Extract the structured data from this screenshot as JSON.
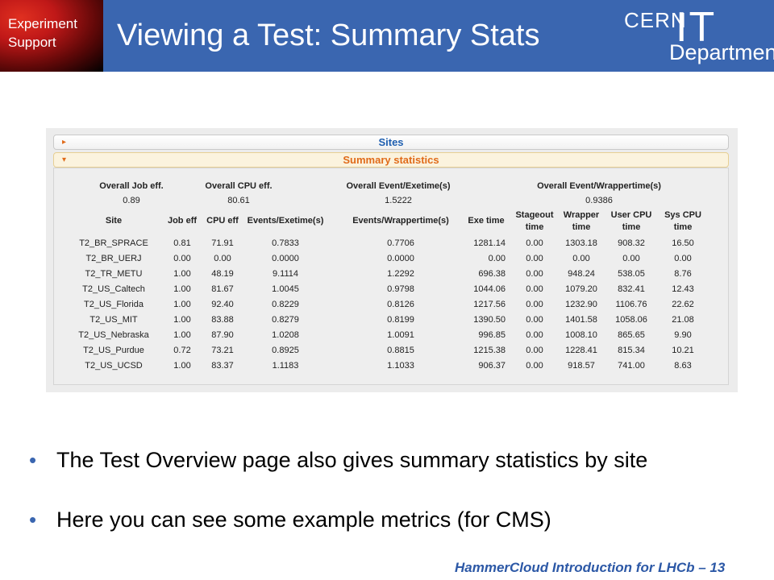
{
  "header": {
    "badge": "Experiment\nSupport",
    "title": "Viewing a Test: Summary Stats",
    "logo": {
      "cern": "CERN",
      "it": "IT",
      "department": "Department"
    }
  },
  "accordion": {
    "sites_label": "Sites",
    "summary_label": "Summary statistics",
    "arrow_collapsed": "▸",
    "arrow_expanded": "▾"
  },
  "overall": {
    "headers": [
      "Overall Job eff.",
      "Overall CPU eff.",
      "Overall Event/Exetime(s)",
      "Overall Event/Wrappertime(s)"
    ],
    "values": [
      "0.89",
      "80.61",
      "1.5222",
      "0.9386"
    ]
  },
  "table": {
    "headers": [
      [
        "Site"
      ],
      [
        "Job eff"
      ],
      [
        "CPU eff"
      ],
      [
        "Events/Exetime(s)"
      ],
      [
        "Events/Wrappertime(s)"
      ],
      [
        "Exe time"
      ],
      [
        "Stageout",
        "time"
      ],
      [
        "Wrapper",
        "time"
      ],
      [
        "User CPU",
        "time"
      ],
      [
        "Sys CPU",
        "time"
      ]
    ],
    "rows": [
      [
        "T2_BR_SPRACE",
        "0.81",
        "71.91",
        "0.7833",
        "0.7706",
        "1281.14",
        "0.00",
        "1303.18",
        "908.32",
        "16.50"
      ],
      [
        "T2_BR_UERJ",
        "0.00",
        "0.00",
        "0.0000",
        "0.0000",
        "0.00",
        "0.00",
        "0.00",
        "0.00",
        "0.00"
      ],
      [
        "T2_TR_METU",
        "1.00",
        "48.19",
        "9.1114",
        "1.2292",
        "696.38",
        "0.00",
        "948.24",
        "538.05",
        "8.76"
      ],
      [
        "T2_US_Caltech",
        "1.00",
        "81.67",
        "1.0045",
        "0.9798",
        "1044.06",
        "0.00",
        "1079.20",
        "832.41",
        "12.43"
      ],
      [
        "T2_US_Florida",
        "1.00",
        "92.40",
        "0.8229",
        "0.8126",
        "1217.56",
        "0.00",
        "1232.90",
        "1106.76",
        "22.62"
      ],
      [
        "T2_US_MIT",
        "1.00",
        "83.88",
        "0.8279",
        "0.8199",
        "1390.50",
        "0.00",
        "1401.58",
        "1058.06",
        "21.08"
      ],
      [
        "T2_US_Nebraska",
        "1.00",
        "87.90",
        "1.0208",
        "1.0091",
        "996.85",
        "0.00",
        "1008.10",
        "865.65",
        "9.90"
      ],
      [
        "T2_US_Purdue",
        "0.72",
        "73.21",
        "0.8925",
        "0.8815",
        "1215.38",
        "0.00",
        "1228.41",
        "815.34",
        "10.21"
      ],
      [
        "T2_US_UCSD",
        "1.00",
        "83.37",
        "1.1183",
        "1.1033",
        "906.37",
        "0.00",
        "918.57",
        "741.00",
        "8.63"
      ]
    ]
  },
  "bullets": [
    {
      "marker": "•",
      "text": "The Test Overview page also gives summary statistics by site"
    },
    {
      "marker": "•",
      "text": "Here you can see some example metrics (for CMS)"
    }
  ],
  "footer": "HammerCloud Introduction for LHCb – 13",
  "colors": {
    "header_blue": "#3a66b0",
    "accent_orange": "#e06b1a",
    "link_blue": "#1f5fb0"
  }
}
